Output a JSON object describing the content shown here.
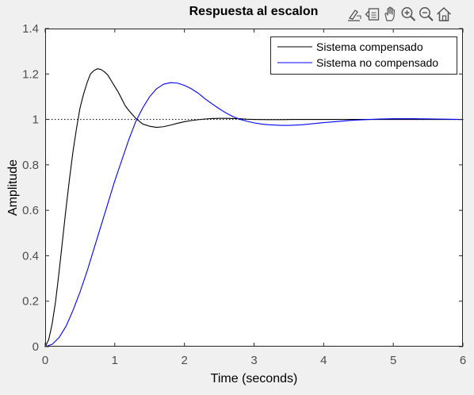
{
  "toolbar": {
    "buttons": [
      {
        "name": "brush-icon",
        "label": "Brush"
      },
      {
        "name": "data-tips-icon",
        "label": "Data tips"
      },
      {
        "name": "pan-icon",
        "label": "Pan"
      },
      {
        "name": "zoom-in-icon",
        "label": "Zoom in"
      },
      {
        "name": "zoom-out-icon",
        "label": "Zoom out"
      },
      {
        "name": "home-icon",
        "label": "Restore view"
      }
    ]
  },
  "chart_data": {
    "type": "line",
    "title": "Respuesta al escalon",
    "xlabel": "Time (seconds)",
    "ylabel": "Amplitude",
    "xlim": [
      0,
      6
    ],
    "ylim": [
      0,
      1.4
    ],
    "xticks": [
      0,
      1,
      2,
      3,
      4,
      5,
      6
    ],
    "yticks": [
      0,
      0.2,
      0.4,
      0.6,
      0.8,
      1,
      1.2,
      1.4
    ],
    "xtick_labels": [
      "0",
      "1",
      "2",
      "3",
      "4",
      "5",
      "6"
    ],
    "ytick_labels": [
      "0",
      "0.2",
      "0.4",
      "0.6",
      "0.8",
      "1",
      "1.2",
      "1.4"
    ],
    "grid": false,
    "legend_position": "top-right",
    "reference_line": {
      "y": 1,
      "style": "dotted",
      "color": "#000000"
    },
    "series": [
      {
        "name": "Sistema compensado",
        "color": "#000000",
        "x": [
          0,
          0.05,
          0.1,
          0.15,
          0.2,
          0.25,
          0.3,
          0.35,
          0.4,
          0.45,
          0.5,
          0.55,
          0.6,
          0.65,
          0.7,
          0.75,
          0.8,
          0.85,
          0.9,
          0.95,
          1.0,
          1.05,
          1.1,
          1.15,
          1.2,
          1.3,
          1.4,
          1.5,
          1.6,
          1.7,
          1.8,
          1.9,
          2.0,
          2.1,
          2.2,
          2.3,
          2.4,
          2.5,
          2.6,
          2.7,
          2.8,
          2.9,
          3.0,
          3.2,
          3.4,
          3.6,
          3.8,
          4.0,
          4.5,
          5.0,
          5.5,
          6.0
        ],
        "y": [
          0,
          0.03,
          0.1,
          0.2,
          0.33,
          0.47,
          0.61,
          0.74,
          0.86,
          0.96,
          1.05,
          1.11,
          1.16,
          1.2,
          1.215,
          1.223,
          1.22,
          1.21,
          1.195,
          1.17,
          1.145,
          1.12,
          1.09,
          1.06,
          1.04,
          1.005,
          0.98,
          0.97,
          0.965,
          0.968,
          0.975,
          0.983,
          0.99,
          0.995,
          0.999,
          1.002,
          1.004,
          1.005,
          1.005,
          1.004,
          1.003,
          1.001,
          1.0,
          0.999,
          0.999,
          1.0,
          1.0,
          1.0,
          1.0,
          1.0,
          1.0,
          1.0
        ]
      },
      {
        "name": "Sistema no compensado",
        "color": "#0000ff",
        "x": [
          0,
          0.1,
          0.2,
          0.3,
          0.4,
          0.5,
          0.6,
          0.7,
          0.8,
          0.9,
          1.0,
          1.1,
          1.2,
          1.3,
          1.4,
          1.5,
          1.6,
          1.7,
          1.8,
          1.9,
          2.0,
          2.1,
          2.2,
          2.3,
          2.4,
          2.5,
          2.6,
          2.7,
          2.8,
          2.9,
          3.0,
          3.1,
          3.2,
          3.3,
          3.4,
          3.5,
          3.6,
          3.7,
          3.8,
          3.9,
          4.0,
          4.2,
          4.4,
          4.6,
          4.8,
          5.0,
          5.3,
          5.6,
          6.0
        ],
        "y": [
          0,
          0.01,
          0.04,
          0.09,
          0.16,
          0.24,
          0.33,
          0.43,
          0.53,
          0.63,
          0.73,
          0.82,
          0.91,
          0.99,
          1.05,
          1.1,
          1.135,
          1.155,
          1.162,
          1.16,
          1.15,
          1.135,
          1.115,
          1.09,
          1.068,
          1.047,
          1.028,
          1.012,
          1.0,
          0.992,
          0.985,
          0.98,
          0.977,
          0.975,
          0.974,
          0.974,
          0.975,
          0.977,
          0.98,
          0.983,
          0.986,
          0.991,
          0.996,
          0.999,
          1.002,
          1.003,
          1.003,
          1.002,
          1.0
        ]
      }
    ]
  }
}
